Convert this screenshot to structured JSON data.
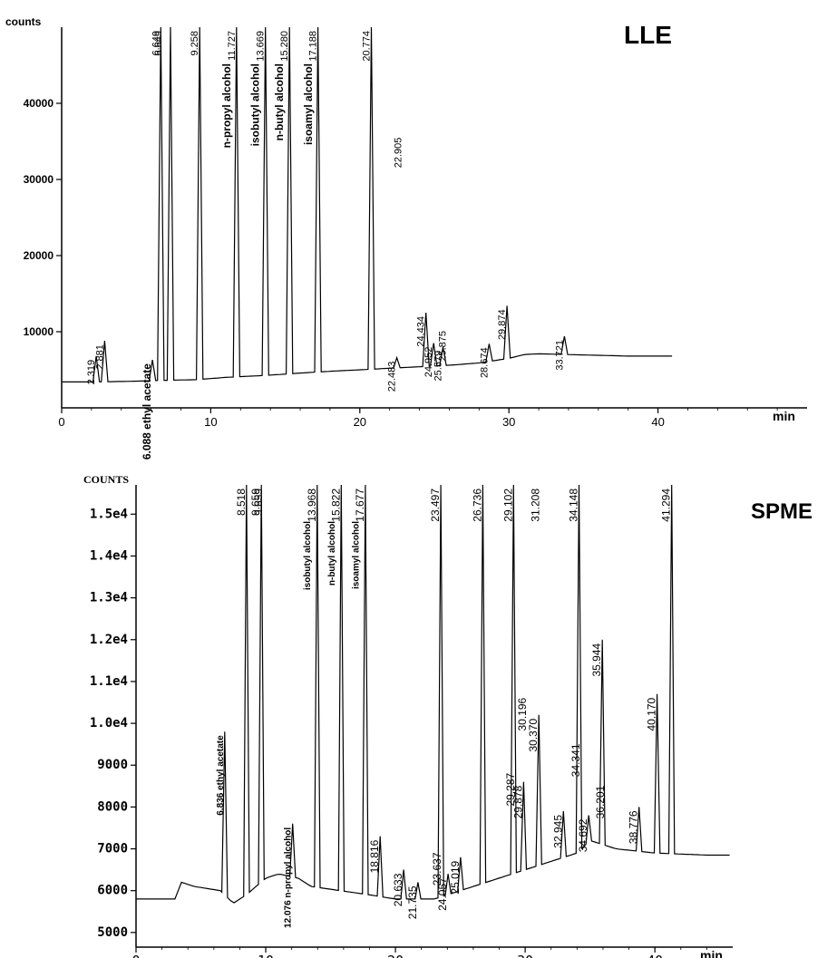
{
  "chart_data": [
    {
      "type": "line",
      "title": "LLE",
      "ylabel": "counts",
      "xlabel": "min",
      "xlim": [
        0,
        50
      ],
      "ylim": [
        0,
        50000
      ],
      "x_ticks": [
        0,
        10,
        20,
        30,
        40
      ],
      "y_ticks": [
        10000,
        20000,
        30000,
        40000
      ],
      "y_tick_labels": [
        "10000",
        "20000",
        "30000",
        "40000"
      ],
      "baseline": [
        [
          0,
          3400
        ],
        [
          2,
          3400
        ],
        [
          5,
          3500
        ],
        [
          6.5,
          3600
        ],
        [
          9,
          3700
        ],
        [
          11,
          4000
        ],
        [
          14,
          4300
        ],
        [
          17,
          4700
        ],
        [
          20,
          5000
        ],
        [
          22,
          5200
        ],
        [
          24,
          5400
        ],
        [
          26,
          5600
        ],
        [
          28,
          5900
        ],
        [
          29,
          6200
        ],
        [
          30,
          6500
        ],
        [
          31,
          7000
        ],
        [
          32,
          7100
        ],
        [
          34,
          7000
        ],
        [
          36,
          6900
        ],
        [
          38,
          6800
        ],
        [
          41,
          6800
        ]
      ],
      "peaks": [
        {
          "label": "2.319",
          "x": 2.319,
          "height": 6800
        },
        {
          "label": "2.881",
          "x": 2.881,
          "height": 8800
        },
        {
          "label": "6.088 ethyl acetate",
          "x": 6.088,
          "height": 6300
        },
        {
          "label": "6.649",
          "x": 6.649,
          "height": 55000
        },
        {
          "label": "6.649",
          "x": 6.8,
          "height": 55000
        },
        {
          "label": "",
          "x": 7.3,
          "height": 55000
        },
        {
          "label": "9.258",
          "x": 9.258,
          "height": 55000
        },
        {
          "label": "11.727",
          "x": 11.727,
          "height": 55000
        },
        {
          "label": "n-propyl alcohol",
          "x": 11.45,
          "height": 0
        },
        {
          "label": "13.669",
          "x": 13.669,
          "height": 55000
        },
        {
          "label": "isobutyl alcohol",
          "x": 13.35,
          "height": 0
        },
        {
          "label": "15.280",
          "x": 15.28,
          "height": 55000
        },
        {
          "label": "n-butyl alcohol",
          "x": 14.95,
          "height": 0
        },
        {
          "label": "17.188",
          "x": 17.188,
          "height": 55000
        },
        {
          "label": "isoamyl alcohol",
          "x": 16.9,
          "height": 0
        },
        {
          "label": "20.774",
          "x": 20.774,
          "height": 55000
        },
        {
          "label": "22.483",
          "x": 22.483,
          "height": 6600
        },
        {
          "label": "22.905",
          "x": 22.905,
          "height": 36000
        },
        {
          "label": "24.434",
          "x": 24.434,
          "height": 12500
        },
        {
          "label": "24.952",
          "x": 24.952,
          "height": 8500
        },
        {
          "label": "25.579",
          "x": 25.579,
          "height": 8000
        },
        {
          "label": "25.875",
          "x": 25.875,
          "height": 10600
        },
        {
          "label": "28.674",
          "x": 28.674,
          "height": 8400
        },
        {
          "label": "29.874",
          "x": 29.874,
          "height": 13400
        },
        {
          "label": "33.721",
          "x": 33.721,
          "height": 9400
        }
      ]
    },
    {
      "type": "line",
      "title": "SPME",
      "ylabel": "COUNTS",
      "xlabel": "min",
      "xlim": [
        0,
        46
      ],
      "ylim": [
        4650,
        15700
      ],
      "x_ticks": [
        0,
        10,
        20,
        30,
        40
      ],
      "y_ticks": [
        5000,
        6000,
        7000,
        8000,
        9000,
        10000,
        11000,
        12000,
        13000,
        14000,
        15000
      ],
      "y_tick_labels": [
        "5000",
        "6000",
        "7000",
        "8000",
        "9000",
        "1.0e4",
        "1.1e4",
        "1.2e4",
        "1.3e4",
        "1.4e4",
        "1.5e4"
      ],
      "baseline": [
        [
          0,
          5800
        ],
        [
          3,
          5800
        ],
        [
          3.5,
          6200
        ],
        [
          4.5,
          6100
        ],
        [
          6.5,
          6000
        ],
        [
          7.5,
          5700
        ],
        [
          8.5,
          5900
        ],
        [
          10,
          6300
        ],
        [
          11,
          6400
        ],
        [
          12.5,
          6300
        ],
        [
          13.5,
          6100
        ],
        [
          18,
          5900
        ],
        [
          20,
          5800
        ],
        [
          22,
          5800
        ],
        [
          23,
          5800
        ],
        [
          24,
          5900
        ],
        [
          26,
          6100
        ],
        [
          28,
          6300
        ],
        [
          30,
          6500
        ],
        [
          32,
          6700
        ],
        [
          34,
          6900
        ],
        [
          35,
          7200
        ],
        [
          37,
          7000
        ],
        [
          40,
          6900
        ],
        [
          44,
          6850
        ],
        [
          46,
          6850
        ]
      ],
      "peaks": [
        {
          "label": "6.836 ethyl acetate",
          "x": 6.836,
          "height": 9800
        },
        {
          "label": "8.518",
          "x": 8.518,
          "height": 16000
        },
        {
          "label": "9.659",
          "x": 9.659,
          "height": 16000
        },
        {
          "label": "9.659",
          "x": 9.85,
          "height": 16000
        },
        {
          "label": "12.076 n-propyl alcohol",
          "x": 12.076,
          "height": 7600
        },
        {
          "label": "13.968",
          "x": 13.968,
          "height": 16000
        },
        {
          "label": "isobutyl alcohol",
          "x": 13.55,
          "height": 0
        },
        {
          "label": "15.822",
          "x": 15.822,
          "height": 16000
        },
        {
          "label": "n-butyl alcohol",
          "x": 15.45,
          "height": 0
        },
        {
          "label": "17.677",
          "x": 17.677,
          "height": 16000
        },
        {
          "label": "isoamyl alcohol",
          "x": 17.3,
          "height": 0
        },
        {
          "label": "18.816",
          "x": 18.816,
          "height": 7300
        },
        {
          "label": "20.633",
          "x": 20.633,
          "height": 6500
        },
        {
          "label": "21.735",
          "x": 21.735,
          "height": 6200
        },
        {
          "label": "23.497",
          "x": 23.497,
          "height": 16000
        },
        {
          "label": "23.637",
          "x": 23.637,
          "height": 7000
        },
        {
          "label": "24.057",
          "x": 24.057,
          "height": 6400
        },
        {
          "label": "25.019",
          "x": 25.019,
          "height": 6800
        },
        {
          "label": "26.736",
          "x": 26.736,
          "height": 16000
        },
        {
          "label": "29.102",
          "x": 29.102,
          "height": 16000
        },
        {
          "label": "29.287",
          "x": 29.287,
          "height": 8900
        },
        {
          "label": "29.878",
          "x": 29.878,
          "height": 8600
        },
        {
          "label": "30.196",
          "x": 30.196,
          "height": 10700
        },
        {
          "label": "31.208",
          "x": 31.208,
          "height": 16000
        },
        {
          "label": "30.370",
          "x": 31.05,
          "height": 10200
        },
        {
          "label": "32.945",
          "x": 32.945,
          "height": 7900
        },
        {
          "label": "34.148",
          "x": 34.148,
          "height": 16000
        },
        {
          "label": "34.341",
          "x": 34.341,
          "height": 9600
        },
        {
          "label": "34.692",
          "x": 34.9,
          "height": 7800
        },
        {
          "label": "35.944",
          "x": 35.944,
          "height": 12000
        },
        {
          "label": "36.201",
          "x": 36.201,
          "height": 8600
        },
        {
          "label": "38.776",
          "x": 38.776,
          "height": 8000
        },
        {
          "label": "40.170",
          "x": 40.17,
          "height": 10700
        },
        {
          "label": "41.294",
          "x": 41.294,
          "height": 16000
        }
      ]
    }
  ]
}
